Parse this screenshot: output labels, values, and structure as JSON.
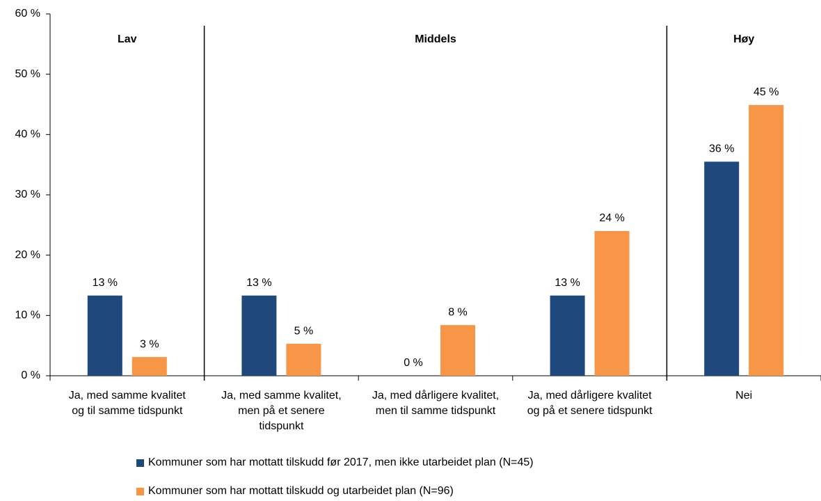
{
  "chart_data": {
    "type": "bar",
    "categories": [
      "Ja, med samme kvalitet og til samme tidspunkt",
      "Ja, med samme kvalitet, men på et senere tidspunkt",
      "Ja, med dårligere kvalitet, men til samme tidspunkt",
      "Ja, med dårligere kvalitet og på et senere tidspunkt",
      "Nei"
    ],
    "series": [
      {
        "name": "Kommuner som har mottatt tilskudd før 2017, men ikke utarbeidet plan (N=45)",
        "color": "#1f497d",
        "values": [
          13.3,
          13.3,
          0,
          13.3,
          35.5
        ],
        "value_labels": [
          "13 %",
          "13 %",
          "0 %",
          "13 %",
          "36 %"
        ]
      },
      {
        "name": "Kommuner som har mottatt tilskudd og utarbeidet plan (N=96)",
        "color": "#f79646",
        "values": [
          3.1,
          5.3,
          8.4,
          24.0,
          44.9
        ],
        "value_labels": [
          "3 %",
          "5 %",
          "8 %",
          "24 %",
          "45 %"
        ]
      }
    ],
    "groups": [
      {
        "label": "Lav",
        "span": 1
      },
      {
        "label": "Middels",
        "span": 3
      },
      {
        "label": "Høy",
        "span": 1
      }
    ],
    "ylim": [
      0,
      60
    ],
    "yticks": [
      {
        "value": 0,
        "label": "0 %"
      },
      {
        "value": 10,
        "label": "10 %"
      },
      {
        "value": 20,
        "label": "20 %"
      },
      {
        "value": 30,
        "label": "30 %"
      },
      {
        "value": 40,
        "label": "40 %"
      },
      {
        "value": 50,
        "label": "50 %"
      },
      {
        "value": 60,
        "label": "60 %"
      }
    ],
    "legend": "bottom",
    "grid": false
  }
}
